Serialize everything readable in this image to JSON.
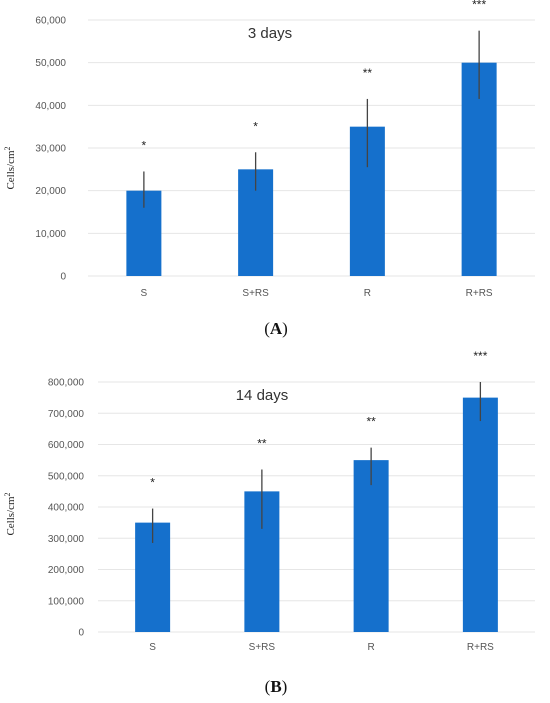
{
  "chart_data": [
    {
      "type": "bar",
      "panel_label": "(A)",
      "title": "3 days",
      "ylabel": "Cells/cm2",
      "categories": [
        "S",
        "S+RS",
        "R",
        "R+RS"
      ],
      "values": [
        20000,
        25000,
        35000,
        50000
      ],
      "error_low": [
        16000,
        20000,
        25500,
        41500
      ],
      "error_high": [
        24500,
        29000,
        41500,
        57500
      ],
      "significance": [
        "*",
        "*",
        "**",
        "***"
      ],
      "ylim": [
        0,
        60000
      ],
      "yticks": [
        0,
        10000,
        20000,
        30000,
        40000,
        50000,
        60000
      ],
      "ytick_labels": [
        "0",
        "10,000",
        "20,000",
        "30,000",
        "40,000",
        "50,000",
        "60,000"
      ],
      "grid": true,
      "color": "#1570cc"
    },
    {
      "type": "bar",
      "panel_label": "(B)",
      "title": "14 days",
      "ylabel": "Cells/cm2",
      "categories": [
        "S",
        "S+RS",
        "R",
        "R+RS"
      ],
      "values": [
        350000,
        450000,
        550000,
        750000
      ],
      "error_low": [
        285000,
        330000,
        470000,
        675000
      ],
      "error_high": [
        395000,
        520000,
        590000,
        800000
      ],
      "significance": [
        "*",
        "**",
        "**",
        "***"
      ],
      "ylim": [
        0,
        800000
      ],
      "yticks": [
        0,
        100000,
        200000,
        300000,
        400000,
        500000,
        600000,
        700000,
        800000
      ],
      "ytick_labels": [
        "0",
        "100,000",
        "200,000",
        "300,000",
        "400,000",
        "500,000",
        "600,000",
        "700,000",
        "800,000"
      ],
      "grid": true,
      "color": "#1570cc"
    }
  ]
}
